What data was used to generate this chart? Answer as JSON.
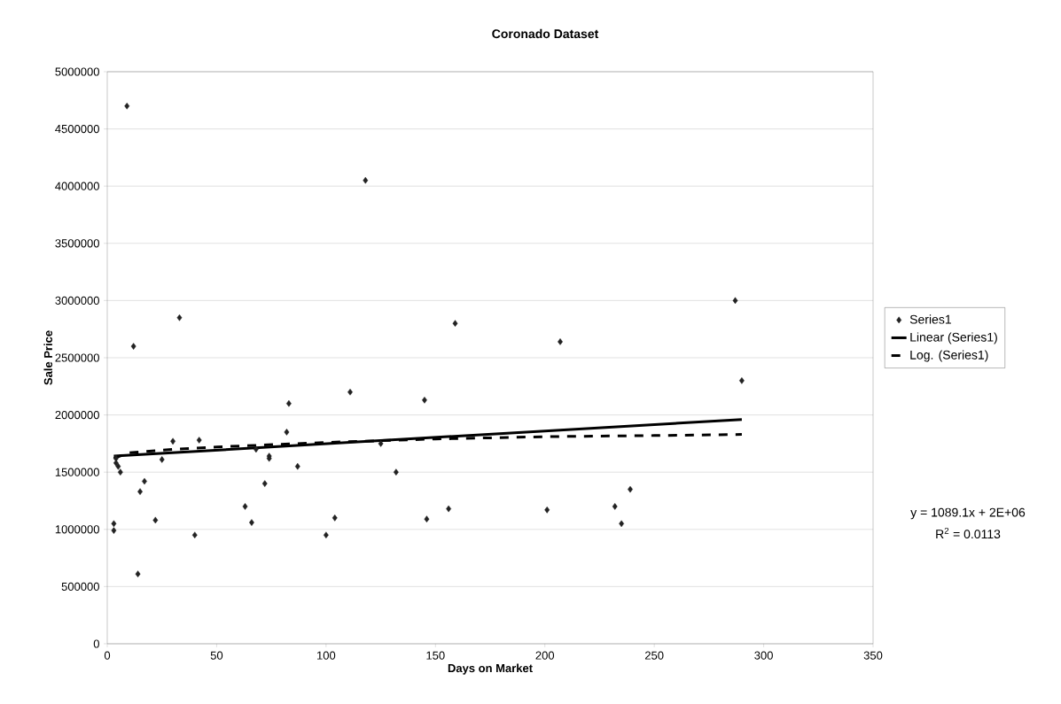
{
  "chart_data": {
    "type": "scatter",
    "title": "Coronado Dataset",
    "xlabel": "Days on Market",
    "ylabel": "Sale Price",
    "xlim": [
      0,
      350
    ],
    "xticks": [
      0,
      50,
      100,
      150,
      200,
      250,
      300,
      350
    ],
    "ylim": [
      0,
      5000000
    ],
    "yticks": [
      0,
      500000,
      1000000,
      1500000,
      2000000,
      2500000,
      3000000,
      3500000,
      4000000,
      4500000,
      5000000
    ],
    "grid": "y",
    "legend": "right",
    "series": [
      {
        "name": "Series1",
        "marker": "diamond",
        "color": "#222222",
        "x": [
          3,
          3,
          4,
          4,
          5,
          6,
          9,
          12,
          14,
          15,
          17,
          22,
          25,
          30,
          33,
          40,
          42,
          63,
          66,
          68,
          72,
          74,
          74,
          82,
          83,
          87,
          100,
          104,
          111,
          118,
          125,
          132,
          145,
          146,
          156,
          159,
          201,
          207,
          232,
          235,
          239,
          287,
          290
        ],
        "values": [
          1050000,
          990000,
          1620000,
          1580000,
          1550000,
          1500000,
          4700000,
          2600000,
          610000,
          1330000,
          1420000,
          1080000,
          1610000,
          1770000,
          2850000,
          950000,
          1780000,
          1200000,
          1060000,
          1700000,
          1400000,
          1640000,
          1620000,
          1850000,
          2100000,
          1550000,
          950000,
          1100000,
          2200000,
          4050000,
          1750000,
          1500000,
          2130000,
          1090000,
          1180000,
          2800000,
          1170000,
          2640000,
          1200000,
          1050000,
          1350000,
          3000000,
          2300000
        ]
      },
      {
        "name": "Linear (Series1)",
        "type": "line",
        "color": "#000000",
        "line_style": "solid",
        "x": [
          3,
          290
        ],
        "values": [
          1640000,
          1960000
        ]
      },
      {
        "name": "Log. (Series1)",
        "type": "line",
        "color": "#000000",
        "line_style": "dashed",
        "x": [
          3,
          10,
          30,
          50,
          100,
          150,
          200,
          250,
          290
        ],
        "values": [
          1620000,
          1670000,
          1700000,
          1720000,
          1760000,
          1790000,
          1810000,
          1820000,
          1830000
        ]
      }
    ],
    "annotations": [
      "y = 1089.1x + 2E+06",
      "R$^{2}$ = 0.0113"
    ]
  }
}
